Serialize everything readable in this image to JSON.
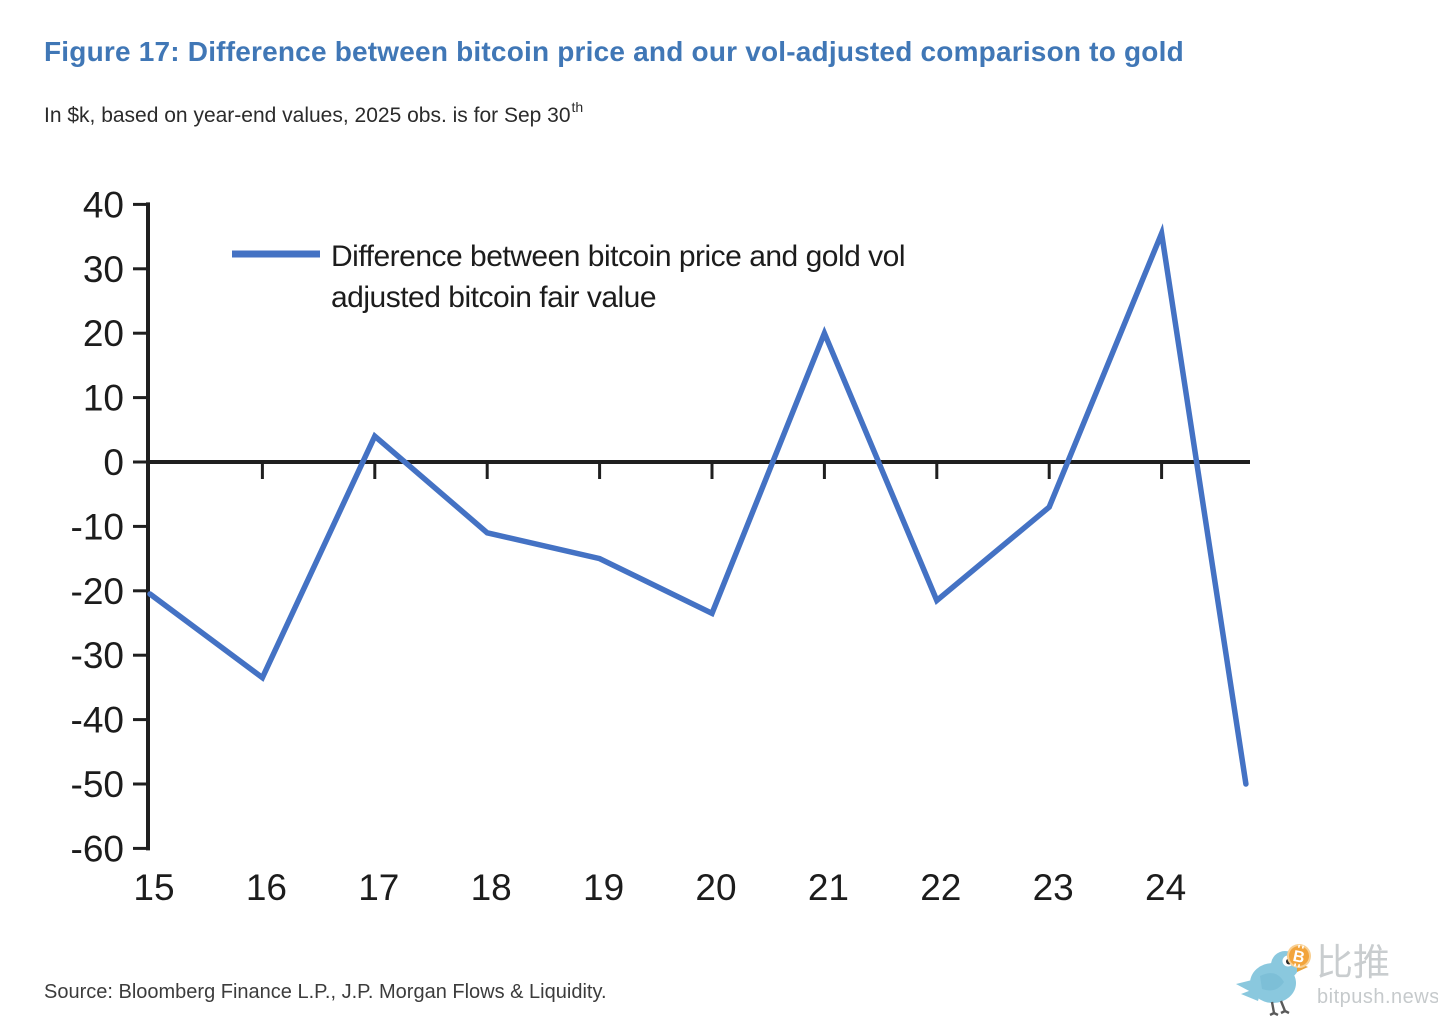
{
  "title": "Figure 17: Difference between bitcoin price and our vol-adjusted comparison to gold",
  "subtitle": "In $k, based on year-end values, 2025 obs. is for Sep 30",
  "subtitle_superscript": "th",
  "source": "Source: Bloomberg Finance L.P., J.P. Morgan Flows & Liquidity.",
  "colors": {
    "title": "#4077b6",
    "line": "#4472c4",
    "axis": "#1f1f1f",
    "tick_label": "#1c1c1c",
    "legend_text": "#1a1a1a"
  },
  "watermark": {
    "brand_cn": "比推",
    "brand_domain": "bitpush.news",
    "bird_icon": "twitter-bird-icon",
    "bitcoin_icon": "bitcoin-badge-icon",
    "bird_color": "#8ac8de",
    "bitcoin_color": "#f2a43b",
    "text_color": "#c9cdcf"
  },
  "chart_data": {
    "type": "line",
    "title": "",
    "xlabel": "",
    "ylabel": "",
    "units": "$k",
    "x": [
      2015,
      2016,
      2017,
      2018,
      2019,
      2020,
      2021,
      2022,
      2023,
      2024,
      2024.75
    ],
    "x_note": "final point is the 2025 observation as of Sep 30, plotted at 2024.75",
    "series": [
      {
        "name": "Difference between bitcoin price and gold vol adjusted bitcoin fair value",
        "color": "#4472c4",
        "values": [
          -20.5,
          -33.5,
          4,
          -11,
          -15,
          -23.5,
          20,
          -21.5,
          -7,
          35.5,
          -50
        ]
      }
    ],
    "ylim": [
      -60,
      40
    ],
    "y_ticks": [
      40,
      30,
      20,
      10,
      0,
      -10,
      -20,
      -30,
      -40,
      -50,
      -60
    ],
    "x_ticks": {
      "years": [
        2015,
        2016,
        2017,
        2018,
        2019,
        2020,
        2021,
        2022,
        2023,
        2024
      ],
      "labels": [
        "15",
        "16",
        "17",
        "18",
        "19",
        "20",
        "21",
        "22",
        "23",
        "24"
      ]
    },
    "legend": {
      "position": "top-left-inside",
      "lines": [
        "Difference between bitcoin price and gold vol",
        "adjusted bitcoin fair value"
      ]
    },
    "grid": false,
    "zero_axis_line": true
  }
}
